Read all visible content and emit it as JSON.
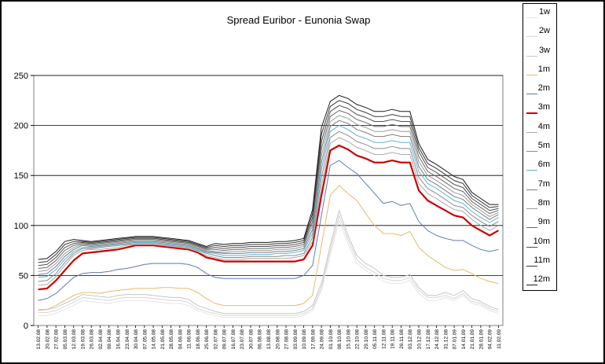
{
  "chart_data": {
    "type": "line",
    "title": "Spread Euribor - Eunonia Swap",
    "xlabel": "",
    "ylabel": "",
    "ylim": [
      0,
      250
    ],
    "yticks": [
      0,
      50,
      100,
      150,
      200,
      250
    ],
    "grid": "horizontal",
    "legend_position": "right",
    "x": [
      "13.02.08",
      "20.02.08",
      "27.02.08",
      "05.03.08",
      "12.03.08",
      "19.03.08",
      "26.03.08",
      "02.04.08",
      "09.04.08",
      "16.04.08",
      "23.04.08",
      "30.04.08",
      "07.05.08",
      "14.05.08",
      "21.05.08",
      "28.05.08",
      "04.06.08",
      "11.06.08",
      "18.06.08",
      "25.06.08",
      "02.07.08",
      "09.07.08",
      "16.07.08",
      "23.07.08",
      "30.07.08",
      "06.08.08",
      "13.08.08",
      "20.08.08",
      "27.08.08",
      "03.09.08",
      "10.09.08",
      "17.09.08",
      "24.09.08",
      "01.10.08",
      "08.10.08",
      "15.10.08",
      "22.10.08",
      "29.10.08",
      "05.11.08",
      "12.11.08",
      "19.11.08",
      "26.11.08",
      "03.12.08",
      "10.12.08",
      "17.12.08",
      "24.12.08",
      "31.12.08",
      "07.01.09",
      "14.01.09",
      "21.01.09",
      "28.01.09",
      "04.02.09",
      "11.02.09"
    ],
    "series": [
      {
        "name": "1w",
        "color": "#e4e4e4",
        "width": 1,
        "values": [
          10,
          10,
          12,
          16,
          20,
          25,
          24,
          23,
          22,
          24,
          25,
          25,
          25,
          24,
          23,
          22,
          22,
          20,
          15,
          12,
          10,
          8,
          8,
          8,
          8,
          8,
          8,
          8,
          8,
          8,
          10,
          15,
          35,
          70,
          105,
          82,
          62,
          55,
          50,
          44,
          42,
          42,
          45,
          32,
          25,
          25,
          28,
          25,
          30,
          22,
          20,
          15,
          12
        ]
      },
      {
        "name": "2w",
        "color": "#d6d6d6",
        "width": 1,
        "values": [
          13,
          13,
          15,
          19,
          23,
          28,
          27,
          26,
          25,
          27,
          28,
          28,
          28,
          27,
          26,
          25,
          25,
          23,
          17,
          14,
          12,
          10,
          10,
          10,
          10,
          10,
          10,
          10,
          10,
          10,
          12,
          17,
          38,
          75,
          110,
          86,
          66,
          58,
          53,
          47,
          45,
          45,
          48,
          35,
          28,
          28,
          30,
          27,
          32,
          24,
          22,
          17,
          14
        ]
      },
      {
        "name": "3w",
        "color": "#c6c6c6",
        "width": 1,
        "values": [
          16,
          16,
          18,
          22,
          26,
          31,
          30,
          29,
          28,
          30,
          31,
          31,
          31,
          30,
          29,
          28,
          28,
          26,
          20,
          17,
          14,
          12,
          12,
          12,
          12,
          12,
          12,
          12,
          12,
          12,
          14,
          20,
          42,
          80,
          115,
          90,
          70,
          62,
          57,
          50,
          48,
          48,
          51,
          38,
          30,
          30,
          33,
          30,
          35,
          27,
          24,
          19,
          16
        ]
      },
      {
        "name": "1m",
        "color": "#e8b96a",
        "width": 1,
        "values": [
          15,
          16,
          20,
          25,
          30,
          33,
          33,
          32,
          34,
          35,
          36,
          37,
          37,
          37,
          38,
          38,
          37,
          37,
          33,
          27,
          22,
          20,
          20,
          20,
          20,
          20,
          20,
          20,
          20,
          20,
          22,
          30,
          80,
          130,
          140,
          132,
          125,
          112,
          100,
          92,
          92,
          90,
          94,
          78,
          70,
          64,
          58,
          55,
          56,
          52,
          47,
          44,
          42
        ]
      },
      {
        "name": "2m",
        "color": "#5c7bb5",
        "width": 1,
        "values": [
          25,
          27,
          32,
          40,
          48,
          52,
          53,
          53,
          54,
          56,
          57,
          59,
          61,
          62,
          62,
          62,
          62,
          61,
          58,
          52,
          48,
          47,
          47,
          47,
          47,
          47,
          47,
          47,
          47,
          47,
          50,
          60,
          110,
          160,
          165,
          158,
          152,
          142,
          132,
          122,
          124,
          120,
          122,
          104,
          95,
          90,
          87,
          85,
          85,
          80,
          76,
          74,
          76
        ]
      },
      {
        "name": "3m",
        "color": "#cc0000",
        "width": 2.2,
        "values": [
          36,
          37,
          45,
          55,
          65,
          72,
          73,
          74,
          75,
          76,
          78,
          80,
          80,
          80,
          79,
          78,
          77,
          76,
          73,
          68,
          66,
          64,
          64,
          64,
          64,
          64,
          64,
          64,
          64,
          64,
          66,
          80,
          130,
          175,
          180,
          176,
          170,
          167,
          163,
          163,
          165,
          163,
          163,
          135,
          125,
          120,
          115,
          110,
          108,
          100,
          95,
          90,
          95
        ]
      },
      {
        "name": "4m",
        "color": "#ababab",
        "width": 1,
        "values": [
          40,
          41,
          49,
          60,
          70,
          75,
          76,
          76,
          77,
          78,
          80,
          81,
          81,
          81,
          80,
          79,
          78,
          77,
          74,
          70,
          68,
          66,
          66,
          66,
          67,
          67,
          67,
          67,
          67,
          68,
          70,
          84,
          140,
          182,
          188,
          184,
          178,
          175,
          171,
          171,
          173,
          171,
          171,
          142,
          132,
          127,
          121,
          116,
          114,
          106,
          100,
          95,
          100
        ]
      },
      {
        "name": "5m",
        "color": "#8c8c8c",
        "width": 1,
        "values": [
          44,
          45,
          52,
          63,
          72,
          77,
          77,
          78,
          79,
          80,
          81,
          82,
          82,
          82,
          81,
          80,
          79,
          78,
          75,
          72,
          70,
          68,
          68,
          68,
          69,
          69,
          69,
          69,
          70,
          70,
          72,
          88,
          148,
          188,
          194,
          190,
          184,
          181,
          177,
          177,
          179,
          177,
          177,
          148,
          137,
          132,
          126,
          120,
          118,
          110,
          104,
          99,
          104
        ]
      },
      {
        "name": "6m",
        "color": "#5ab4dc",
        "width": 1,
        "values": [
          48,
          49,
          56,
          66,
          74,
          78,
          78,
          79,
          80,
          81,
          82,
          83,
          83,
          83,
          82,
          81,
          80,
          79,
          76,
          73,
          72,
          70,
          70,
          70,
          71,
          71,
          71,
          72,
          72,
          73,
          75,
          92,
          156,
          194,
          200,
          196,
          190,
          187,
          183,
          183,
          185,
          183,
          183,
          154,
          142,
          137,
          131,
          125,
          122,
          114,
          108,
          103,
          108
        ]
      },
      {
        "name": "7m",
        "color": "#7d7d7d",
        "width": 1,
        "values": [
          51,
          52,
          59,
          69,
          76,
          80,
          79,
          80,
          81,
          82,
          83,
          84,
          84,
          84,
          83,
          82,
          81,
          80,
          77,
          74,
          73,
          72,
          72,
          72,
          73,
          73,
          73,
          74,
          74,
          75,
          77,
          96,
          163,
          199,
          205,
          202,
          196,
          193,
          189,
          189,
          191,
          189,
          189,
          159,
          146,
          141,
          135,
          129,
          126,
          118,
          112,
          106,
          111
        ]
      },
      {
        "name": "8m",
        "color": "#9b9b9b",
        "width": 1,
        "values": [
          54,
          55,
          62,
          72,
          78,
          81,
          80,
          81,
          82,
          83,
          84,
          85,
          85,
          85,
          84,
          83,
          82,
          81,
          78,
          75,
          74,
          73,
          74,
          74,
          75,
          75,
          75,
          76,
          76,
          77,
          79,
          100,
          170,
          204,
          210,
          207,
          201,
          198,
          194,
          194,
          196,
          194,
          194,
          164,
          150,
          145,
          139,
          133,
          130,
          121,
          115,
          109,
          113
        ]
      },
      {
        "name": "9m",
        "color": "#686868",
        "width": 1,
        "values": [
          57,
          58,
          65,
          75,
          80,
          82,
          81,
          82,
          83,
          84,
          85,
          86,
          86,
          86,
          85,
          84,
          83,
          82,
          79,
          76,
          76,
          75,
          76,
          76,
          77,
          77,
          77,
          78,
          78,
          79,
          81,
          104,
          177,
          209,
          215,
          212,
          206,
          203,
          199,
          199,
          201,
          199,
          199,
          169,
          154,
          149,
          143,
          137,
          134,
          124,
          118,
          112,
          115
        ]
      },
      {
        "name": "10m",
        "color": "#505050",
        "width": 1,
        "values": [
          60,
          61,
          68,
          78,
          82,
          83,
          82,
          83,
          84,
          85,
          86,
          87,
          87,
          87,
          86,
          85,
          84,
          83,
          80,
          77,
          78,
          77,
          78,
          78,
          79,
          79,
          79,
          80,
          80,
          81,
          83,
          108,
          184,
          214,
          220,
          217,
          211,
          208,
          204,
          204,
          206,
          204,
          204,
          174,
          158,
          153,
          147,
          141,
          138,
          127,
          121,
          115,
          117
        ]
      },
      {
        "name": "11m",
        "color": "#383838",
        "width": 1,
        "values": [
          63,
          64,
          71,
          81,
          84,
          84,
          83,
          84,
          85,
          86,
          87,
          88,
          88,
          88,
          87,
          86,
          85,
          84,
          81,
          78,
          80,
          79,
          80,
          80,
          81,
          81,
          81,
          82,
          82,
          83,
          85,
          112,
          191,
          219,
          225,
          222,
          216,
          213,
          209,
          209,
          211,
          209,
          209,
          178,
          162,
          157,
          151,
          145,
          142,
          130,
          124,
          118,
          119
        ]
      },
      {
        "name": "12m",
        "color": "#1a1a1a",
        "width": 1,
        "values": [
          66,
          67,
          74,
          84,
          86,
          85,
          84,
          85,
          86,
          87,
          88,
          89,
          89,
          89,
          88,
          87,
          86,
          85,
          82,
          79,
          82,
          81,
          82,
          82,
          83,
          83,
          83,
          84,
          84,
          85,
          87,
          116,
          198,
          224,
          230,
          227,
          221,
          218,
          214,
          214,
          216,
          214,
          214,
          182,
          166,
          161,
          155,
          149,
          146,
          133,
          127,
          121,
          121
        ]
      }
    ]
  }
}
